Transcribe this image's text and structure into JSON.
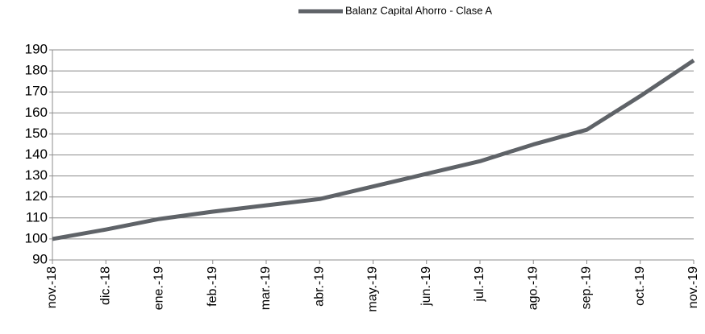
{
  "chart_data": {
    "type": "line",
    "categories": [
      "nov.-18",
      "dic.-18",
      "ene.-19",
      "feb.-19",
      "mar.-19",
      "abr.-19",
      "may.-19",
      "jun.-19",
      "jul.-19",
      "ago.-19",
      "sep.-19",
      "oct.-19",
      "nov.-19"
    ],
    "series": [
      {
        "name": "Balanz Capital Ahorro - Clase A",
        "color": "#5f6368",
        "values": [
          100,
          104.5,
          109.5,
          113,
          116,
          119,
          125,
          131,
          137,
          145,
          152,
          168,
          185
        ]
      }
    ],
    "ylim": [
      90,
      190
    ],
    "yticks": [
      90,
      100,
      110,
      120,
      130,
      140,
      150,
      160,
      170,
      180,
      190
    ],
    "grid": true,
    "legend": "top"
  }
}
